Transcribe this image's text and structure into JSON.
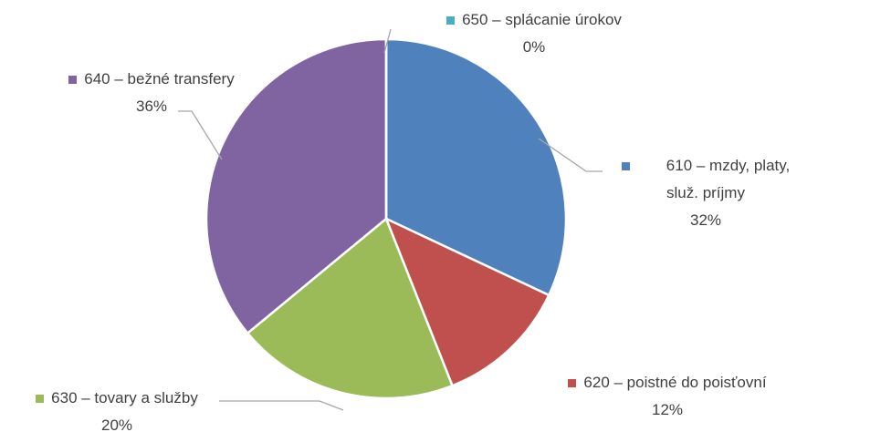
{
  "chart_data": {
    "type": "pie",
    "categories": [
      "610 – mzdy, platy, služ. príjmy",
      "620 – poistné do poisťovní",
      "630 – tovary a služby",
      "640 – bežné transfery",
      "650 – splácanie úrokov"
    ],
    "values": [
      32,
      12,
      20,
      36,
      0
    ],
    "value_labels": [
      "32%",
      "12%",
      "20%",
      "36%",
      "0%"
    ],
    "colors": [
      "#4f81bd",
      "#c0504d",
      "#9bbb59",
      "#8064a2",
      "#4bacc6"
    ]
  }
}
